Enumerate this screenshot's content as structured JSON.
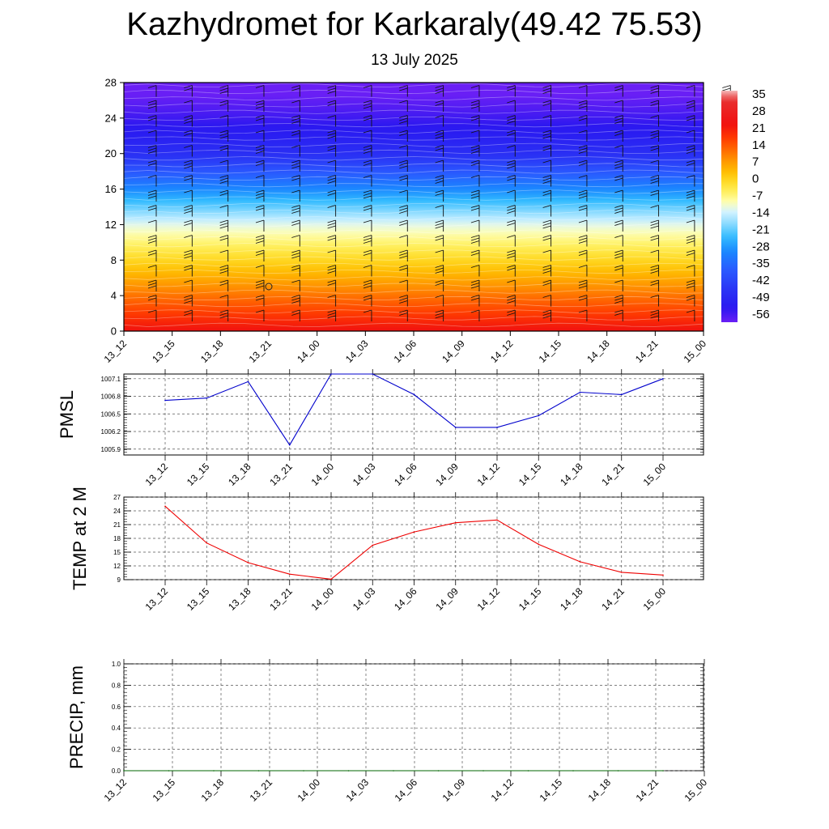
{
  "title": "Kazhydromet for Karkaraly(49.42 75.53)",
  "subtitle": "13 July 2025",
  "chart_data": [
    {
      "type": "heatmap",
      "name": "cross-section",
      "title": "",
      "ylabel": "",
      "xlabel": "",
      "ylim": [
        0,
        28
      ],
      "yticks": [
        "0",
        "4",
        "8",
        "12",
        "16",
        "20",
        "24",
        "28"
      ],
      "categories": [
        "13_12",
        "13_15",
        "13_18",
        "13_21",
        "14_00",
        "14_03",
        "14_06",
        "14_09",
        "14_12",
        "14_15",
        "14_18",
        "14_21",
        "15_00"
      ],
      "colorbar": {
        "labels": [
          "35",
          "28",
          "21",
          "14",
          "7",
          "0",
          "-7",
          "-14",
          "-21",
          "-28",
          "-35",
          "-42",
          "-49",
          "-56"
        ],
        "range": [
          -60,
          38
        ]
      },
      "levels": [
        0,
        4,
        8,
        12,
        16,
        20,
        24,
        28
      ],
      "profile": [
        24,
        12,
        0,
        -12,
        -30,
        -48,
        -56,
        -62
      ],
      "wind_barbs": true
    },
    {
      "type": "line",
      "name": "pmsl",
      "ylabel": "PMSL",
      "color": "#0000cc",
      "categories": [
        "13_12",
        "13_15",
        "13_18",
        "13_21",
        "14_00",
        "14_03",
        "14_06",
        "14_09",
        "14_12",
        "14_15",
        "14_18",
        "14_21",
        "15_00"
      ],
      "values": [
        1006.73,
        1006.77,
        1007.05,
        1005.97,
        1007.19,
        1007.19,
        1006.83,
        1006.27,
        1006.27,
        1006.47,
        1006.87,
        1006.83,
        1007.1
      ],
      "ylim": [
        1005.8,
        1007.18
      ],
      "yticks": [
        "1005.9",
        "1006.2",
        "1006.5",
        "1006.8",
        "1007.1"
      ]
    },
    {
      "type": "line",
      "name": "temp2m",
      "ylabel": "TEMP at 2 M",
      "color": "#ee0000",
      "categories": [
        "13_12",
        "13_15",
        "13_18",
        "13_21",
        "14_00",
        "14_03",
        "14_06",
        "14_09",
        "14_12",
        "14_15",
        "14_18",
        "14_21",
        "15_00"
      ],
      "values": [
        25,
        17,
        12.7,
        10.2,
        9.1,
        16.5,
        19.4,
        21.4,
        22,
        16.7,
        12.9,
        10.6,
        10
      ],
      "ylim": [
        9,
        27
      ],
      "yticks": [
        "9",
        "12",
        "15",
        "18",
        "21",
        "24",
        "27"
      ]
    },
    {
      "type": "line",
      "name": "precip",
      "ylabel": "PRECIP, mm",
      "color": "#006600",
      "categories": [
        "13_12",
        "13_15",
        "13_18",
        "13_21",
        "14_00",
        "14_03",
        "14_06",
        "14_09",
        "14_12",
        "14_15",
        "14_18",
        "14_21",
        "15_00"
      ],
      "values": [
        0,
        0,
        0,
        0,
        0,
        0,
        0,
        0,
        0,
        0,
        0,
        0,
        0
      ],
      "ylim": [
        0,
        1
      ],
      "yticks": [
        "0.0",
        "0.2",
        "0.4",
        "0.6",
        "0.8",
        "1.0"
      ]
    }
  ]
}
